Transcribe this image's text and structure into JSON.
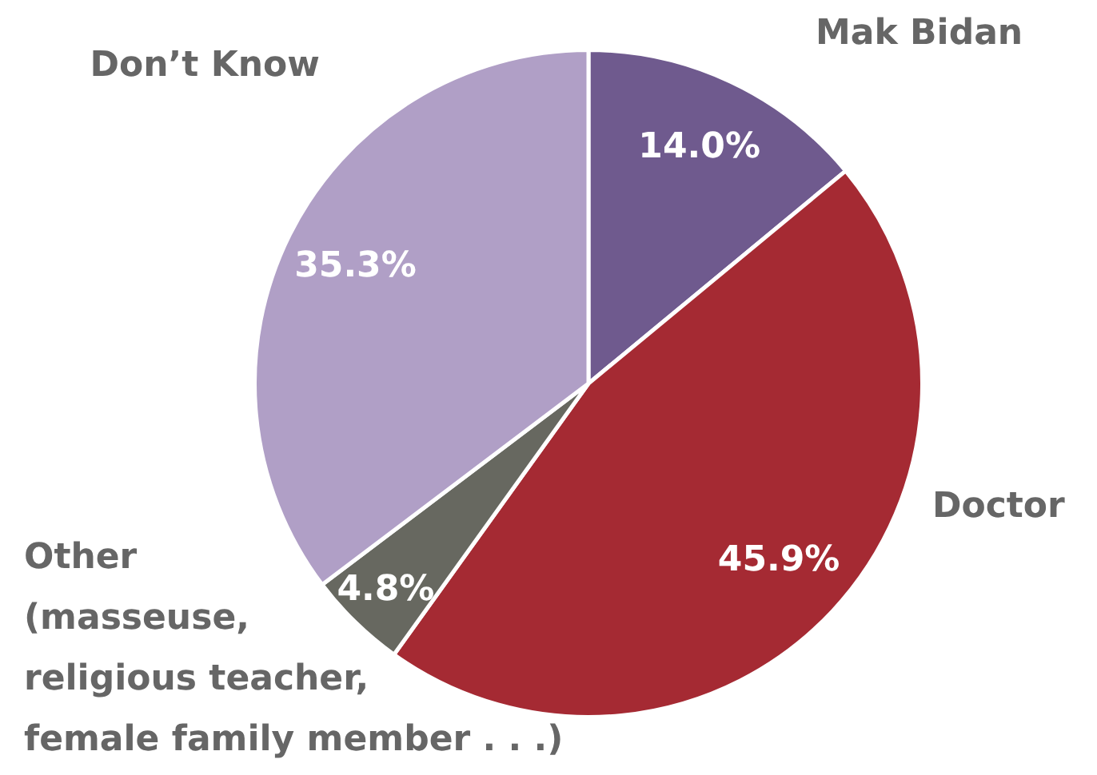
{
  "chart_data": {
    "type": "pie",
    "categories": [
      "Mak Bidan",
      "Doctor",
      "Other\n(masseuse,\nreligious teacher,\nfemale family member . . .)",
      "Don’t Know"
    ],
    "values": [
      14.0,
      45.9,
      4.8,
      35.3
    ],
    "colors": [
      "#6f5a8e",
      "#a52a33",
      "#676860",
      "#b09fc6"
    ],
    "value_labels": [
      "14.0%",
      "45.9%",
      "4.8%",
      "35.3%"
    ],
    "legend": false
  }
}
